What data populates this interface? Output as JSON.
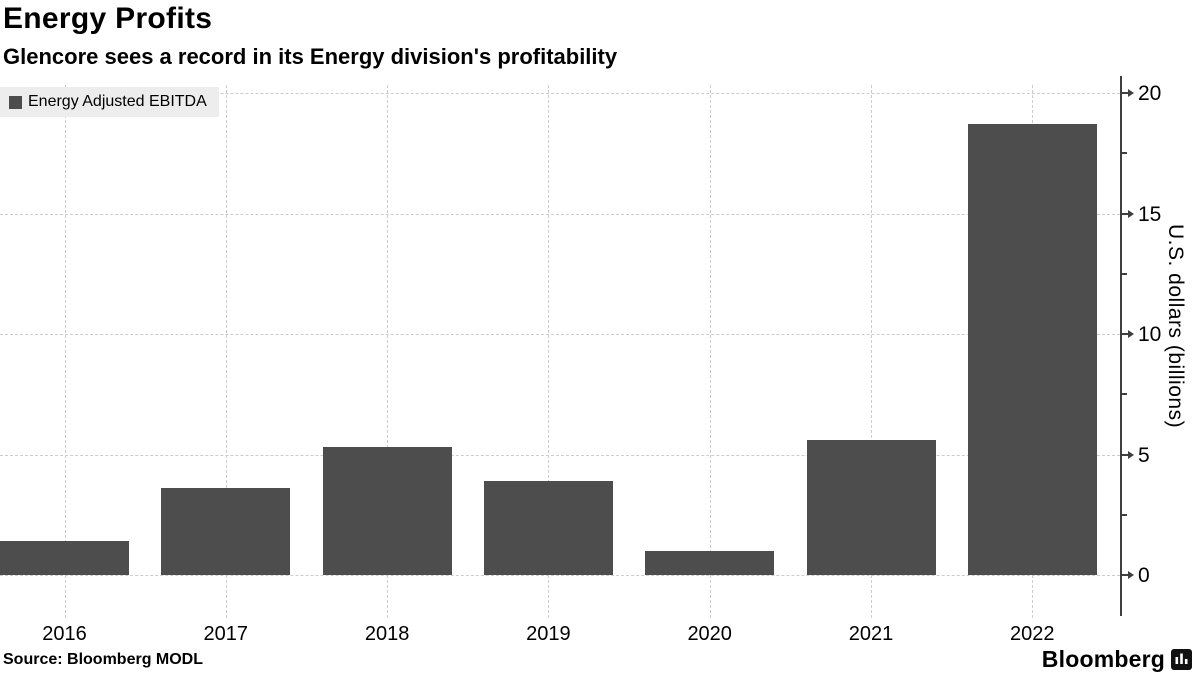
{
  "header": {
    "title": "Energy Profits",
    "subtitle": "Glencore sees a record in its Energy division's profitability"
  },
  "legend": {
    "label": "Energy Adjusted EBITDA"
  },
  "footer": {
    "source": "Source: Bloomberg MODL",
    "brand": "Bloomberg"
  },
  "colors": {
    "bar": "#4d4d4d",
    "legend_bg": "#ededed",
    "gridline": "#cccccc",
    "axis": "#3f3f3f",
    "text": "#000000"
  },
  "icons": {
    "legend_swatch": "square-swatch-icon",
    "brand_mark": "bloomberg-chart-bubble-icon"
  },
  "chart_data": {
    "type": "bar",
    "title": "Energy Profits",
    "subtitle": "Glencore sees a record in its Energy division's profitability",
    "series_name": "Energy Adjusted EBITDA",
    "categories": [
      "2016",
      "2017",
      "2018",
      "2019",
      "2020",
      "2021",
      "2022"
    ],
    "values": [
      1.4,
      3.6,
      5.3,
      3.9,
      1.0,
      5.6,
      18.7
    ],
    "xlabel": "",
    "ylabel": "U.S. dollars (billions)",
    "ylim": [
      0,
      20
    ],
    "yticks": [
      0,
      5,
      10,
      15,
      20
    ],
    "yticks_minor": [
      2.5,
      7.5,
      12.5,
      17.5
    ],
    "grid": true,
    "legend_position": "top-left",
    "axis_side": "right"
  }
}
